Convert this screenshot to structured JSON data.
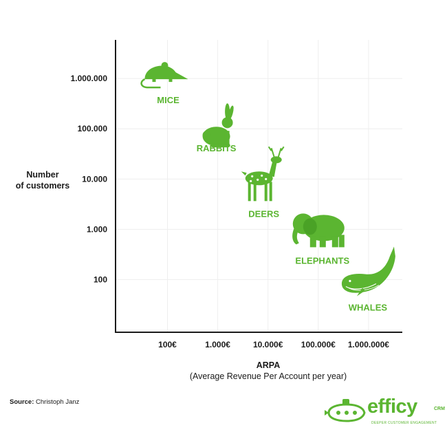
{
  "chart_data": {
    "type": "scatter",
    "title": "",
    "xlabel": "ARPA",
    "xlabel_sub": "(Average Revenue Per Account per year)",
    "ylabel_lines": [
      "Number",
      "of customers"
    ],
    "x_scale": "log",
    "y_scale": "log",
    "x_ticks": [
      {
        "value": 100,
        "label": "100€"
      },
      {
        "value": 1000,
        "label": "1.000€"
      },
      {
        "value": 10000,
        "label": "10.000€"
      },
      {
        "value": 100000,
        "label": "100.000€"
      },
      {
        "value": 1000000,
        "label": "1.000.000€"
      }
    ],
    "y_ticks": [
      {
        "value": 100,
        "label": "100"
      },
      {
        "value": 1000,
        "label": "1.000"
      },
      {
        "value": 10000,
        "label": "10.000"
      },
      {
        "value": 100000,
        "label": "100.000"
      },
      {
        "value": 1000000,
        "label": "1.000.000"
      }
    ],
    "xlim": [
      10,
      3000000
    ],
    "ylim": [
      6,
      20000000
    ],
    "grid": true,
    "points": [
      {
        "label": "MICE",
        "icon": "mouse-icon",
        "x": 100,
        "y": 1000000
      },
      {
        "label": "RABBITS",
        "icon": "rabbit-icon",
        "x": 1000,
        "y": 100000
      },
      {
        "label": "DEERS",
        "icon": "deer-icon",
        "x": 10000,
        "y": 10000
      },
      {
        "label": "ELEPHANTS",
        "icon": "elephant-icon",
        "x": 100000,
        "y": 1000
      },
      {
        "label": "WHALES",
        "icon": "whale-icon",
        "x": 1000000,
        "y": 100
      }
    ],
    "colors": {
      "accent": "#5bb531",
      "axis": "#1a1a1a",
      "grid": "#eeeeee"
    }
  },
  "footer": {
    "source_label": "Source:",
    "source_value": "Christoph Janz"
  },
  "logo": {
    "word": "efficy",
    "suffix": "CRM",
    "tagline": "DEEPER CUSTOMER ENGAGEMENT"
  }
}
